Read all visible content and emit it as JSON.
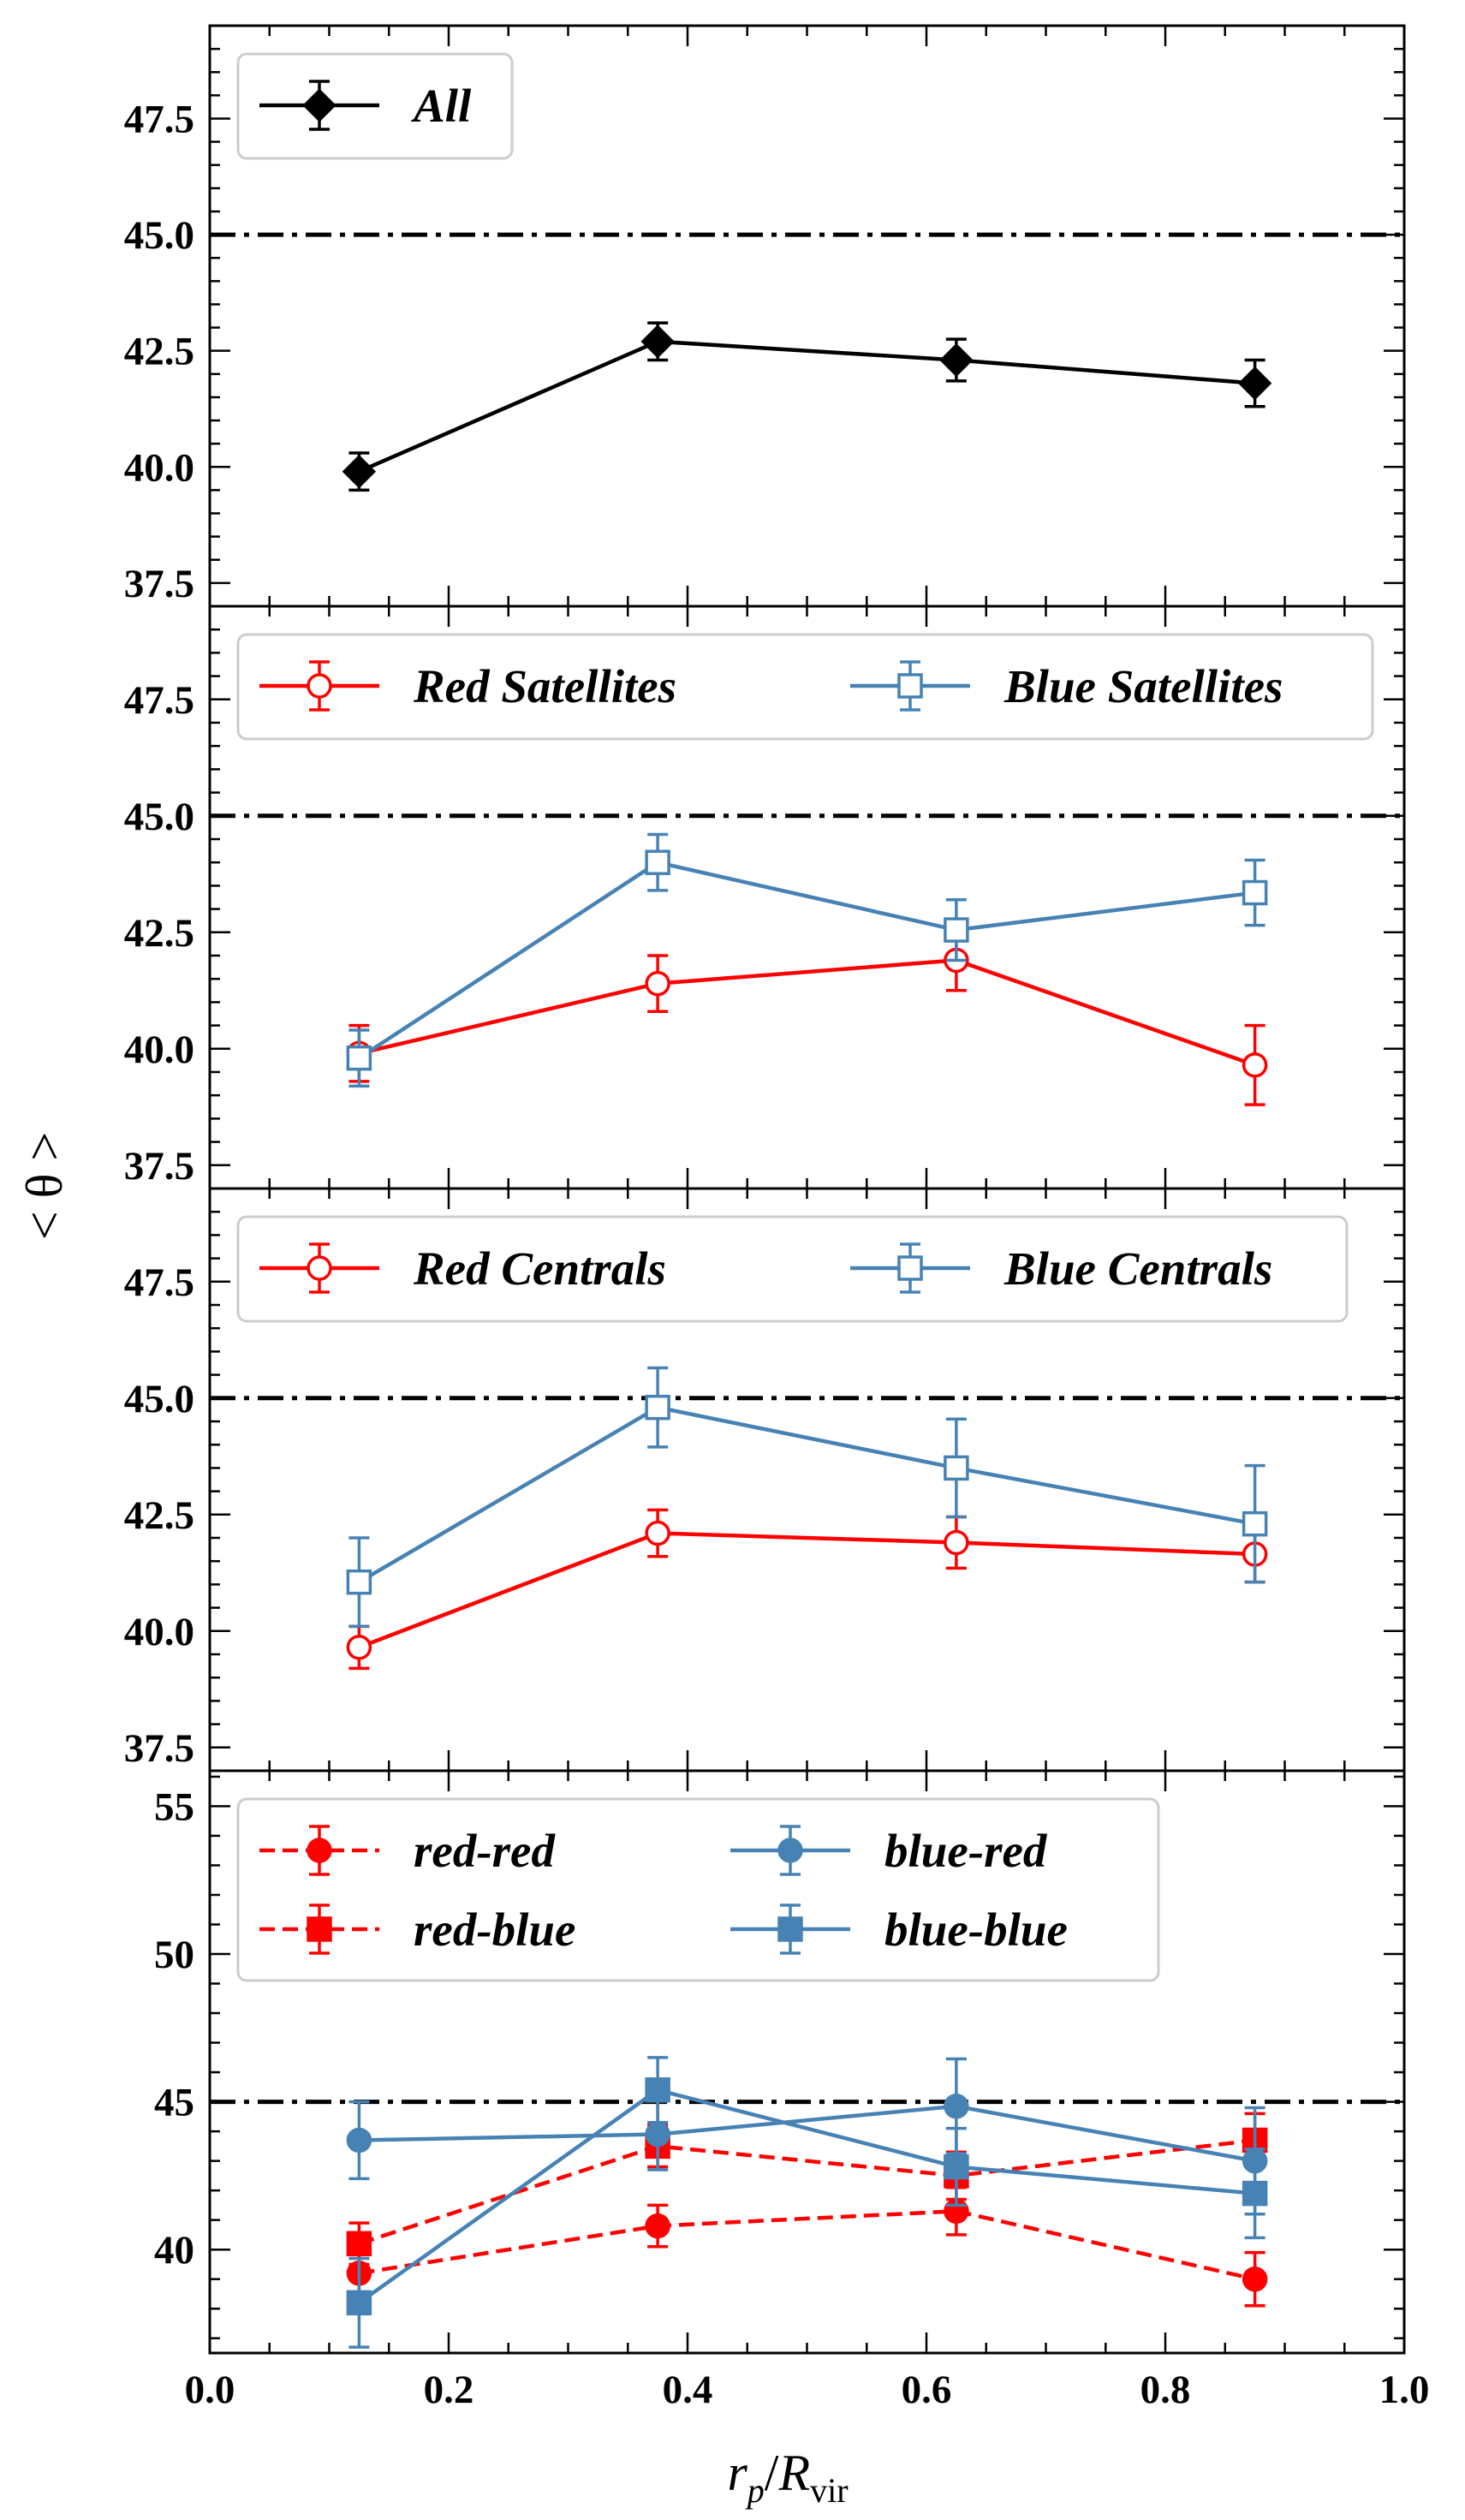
{
  "chart_data": [
    {
      "type": "line",
      "panel": "top",
      "xlim": [
        0.0,
        1.0
      ],
      "ylim": [
        37.0,
        49.5
      ],
      "yticks": [
        37.5,
        40.0,
        42.5,
        45.0,
        47.5
      ],
      "ytick_labels": [
        "37.5",
        "40.0",
        "42.5",
        "45.0",
        "47.5"
      ],
      "reference_line": 45.0,
      "legend": {
        "location": "upper-left",
        "columns": 1
      },
      "x": [
        0.125,
        0.375,
        0.625,
        0.875
      ],
      "series": [
        {
          "name": "All",
          "color": "#000000",
          "marker": "diamond",
          "filled": true,
          "dashed": false,
          "values": [
            39.9,
            42.7,
            42.3,
            41.8
          ],
          "errors": [
            0.4,
            0.4,
            0.45,
            0.5
          ]
        }
      ]
    },
    {
      "type": "line",
      "panel": "satellites",
      "xlim": [
        0.0,
        1.0
      ],
      "ylim": [
        37.0,
        49.5
      ],
      "yticks": [
        37.5,
        40.0,
        42.5,
        45.0,
        47.5
      ],
      "ytick_labels": [
        "37.5",
        "40.0",
        "42.5",
        "45.0",
        "47.5"
      ],
      "reference_line": 45.0,
      "legend": {
        "location": "upper-left",
        "columns": 2
      },
      "x": [
        0.125,
        0.375,
        0.625,
        0.875
      ],
      "series": [
        {
          "name": "Red Satellites",
          "color": "#ff0000",
          "marker": "circle",
          "filled": false,
          "dashed": false,
          "values": [
            39.9,
            41.4,
            41.9,
            39.65
          ],
          "errors": [
            0.6,
            0.6,
            0.65,
            0.85
          ]
        },
        {
          "name": "Blue Satellites",
          "color": "#4682b4",
          "marker": "square",
          "filled": false,
          "dashed": false,
          "values": [
            39.8,
            44.0,
            42.55,
            43.35
          ],
          "errors": [
            0.6,
            0.6,
            0.65,
            0.7
          ]
        }
      ]
    },
    {
      "type": "line",
      "panel": "centrals",
      "xlim": [
        0.0,
        1.0
      ],
      "ylim": [
        37.0,
        49.5
      ],
      "yticks": [
        37.5,
        40.0,
        42.5,
        45.0,
        47.5
      ],
      "ytick_labels": [
        "37.5",
        "40.0",
        "42.5",
        "45.0",
        "47.5"
      ],
      "reference_line": 45.0,
      "legend": {
        "location": "upper-left",
        "columns": 2
      },
      "x": [
        0.125,
        0.375,
        0.625,
        0.875
      ],
      "series": [
        {
          "name": "Red Centrals",
          "color": "#ff0000",
          "marker": "circle",
          "filled": false,
          "dashed": false,
          "values": [
            39.65,
            42.1,
            41.9,
            41.65
          ],
          "errors": [
            0.45,
            0.5,
            0.55,
            0.6
          ]
        },
        {
          "name": "Blue Centrals",
          "color": "#4682b4",
          "marker": "square",
          "filled": false,
          "dashed": false,
          "values": [
            41.05,
            44.8,
            43.5,
            42.3
          ],
          "errors": [
            0.95,
            0.85,
            1.05,
            1.25
          ]
        }
      ]
    },
    {
      "type": "line",
      "panel": "pairs",
      "xlim": [
        0.0,
        1.0
      ],
      "ylim": [
        36.5,
        56.2
      ],
      "yticks": [
        40,
        45,
        50,
        55
      ],
      "ytick_labels": [
        "40",
        "45",
        "50",
        "55"
      ],
      "reference_line": 45.0,
      "legend": {
        "location": "upper-left",
        "columns": 2
      },
      "xticks": [
        0.0,
        0.2,
        0.4,
        0.6,
        0.8,
        1.0
      ],
      "xtick_labels": [
        "0.0",
        "0.2",
        "0.4",
        "0.6",
        "0.8",
        "1.0"
      ],
      "x": [
        0.125,
        0.375,
        0.625,
        0.875
      ],
      "series": [
        {
          "name": "red-red",
          "color": "#ff0000",
          "marker": "circle",
          "filled": true,
          "dashed": true,
          "values": [
            39.2,
            40.8,
            41.3,
            39.0
          ],
          "errors": [
            0.7,
            0.7,
            0.8,
            0.9
          ]
        },
        {
          "name": "red-blue",
          "color": "#ff0000",
          "marker": "square",
          "filled": true,
          "dashed": true,
          "values": [
            40.2,
            43.5,
            42.5,
            43.7
          ],
          "errors": [
            0.7,
            0.7,
            0.8,
            0.9
          ]
        },
        {
          "name": "blue-red",
          "color": "#4682b4",
          "marker": "circle",
          "filled": true,
          "dashed": false,
          "values": [
            43.7,
            43.9,
            44.85,
            43.0
          ],
          "errors": [
            1.3,
            1.2,
            1.6,
            1.8
          ]
        },
        {
          "name": "blue-blue",
          "color": "#4682b4",
          "marker": "square",
          "filled": true,
          "dashed": false,
          "values": [
            38.2,
            45.4,
            42.8,
            41.9
          ],
          "errors": [
            1.5,
            1.1,
            1.3,
            1.5
          ]
        }
      ]
    }
  ],
  "axes": {
    "ylabel": "< θ >",
    "xlabel_main": "r",
    "xlabel_sub": "p",
    "xlabel_sep": "/",
    "xlabel_main2": "R",
    "xlabel_sub2": "vir"
  }
}
